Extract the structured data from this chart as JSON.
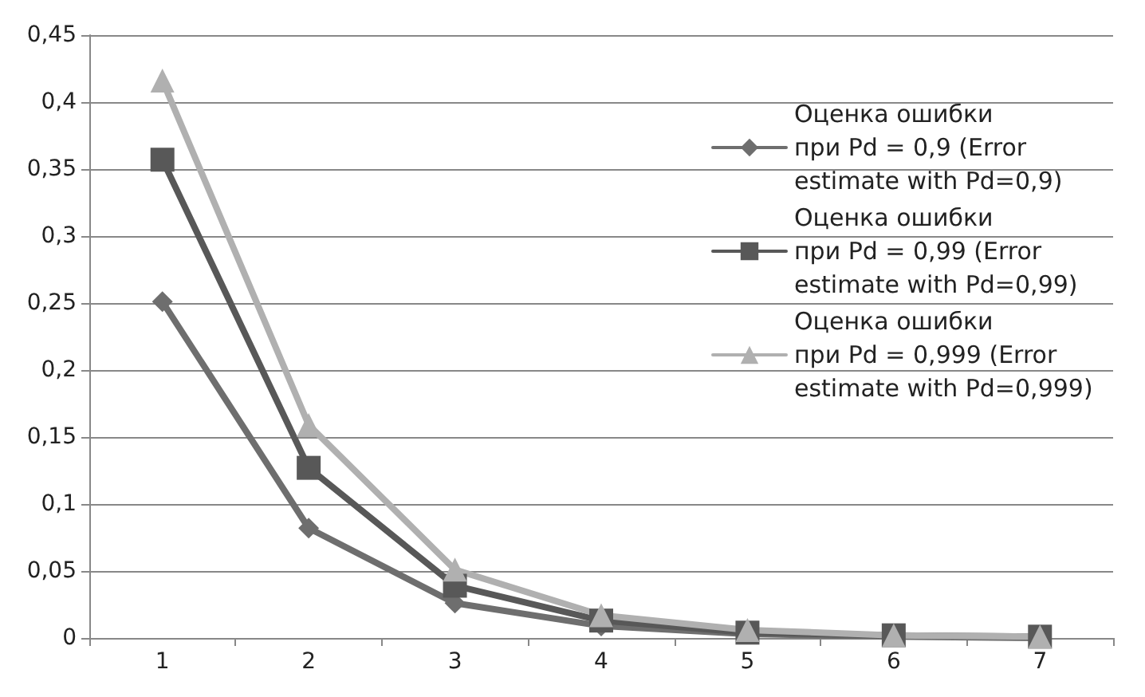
{
  "chart_data": {
    "type": "line",
    "categories": [
      "1",
      "2",
      "3",
      "4",
      "5",
      "6",
      "7"
    ],
    "series": [
      {
        "name": "Оценка ошибки при Pd = 0,9 (Error estimate with Pd=0,9)",
        "color": "#6e6e6e",
        "marker": "diamond",
        "values": [
          0.251,
          0.082,
          0.026,
          0.009,
          0.003,
          0.001,
          0
        ]
      },
      {
        "name": "Оценка ошибки при Pd = 0,99 (Error estimate with Pd=0,99)",
        "color": "#585858",
        "marker": "square",
        "values": [
          0.357,
          0.127,
          0.039,
          0.013,
          0.004,
          0.002,
          0.001
        ]
      },
      {
        "name": "Оценка ошибки при Pd = 0,999 (Error estimate with Pd=0,999)",
        "color": "#b0b0b0",
        "marker": "triangle",
        "values": [
          0.416,
          0.159,
          0.051,
          0.017,
          0.006,
          0.002,
          0.001
        ]
      }
    ],
    "ylim": [
      0,
      0.45
    ],
    "yticks": [
      {
        "value": 0,
        "label": "0"
      },
      {
        "value": 0.05,
        "label": "0,05"
      },
      {
        "value": 0.1,
        "label": "0,1"
      },
      {
        "value": 0.15,
        "label": "0,15"
      },
      {
        "value": 0.2,
        "label": "0,2"
      },
      {
        "value": 0.25,
        "label": "0,25"
      },
      {
        "value": 0.3,
        "label": "0,3"
      },
      {
        "value": 0.35,
        "label": "0,35"
      },
      {
        "value": 0.4,
        "label": "0,4"
      },
      {
        "value": 0.45,
        "label": "0,45"
      }
    ],
    "grid": "y",
    "legend": "right",
    "line_style": "solid"
  }
}
